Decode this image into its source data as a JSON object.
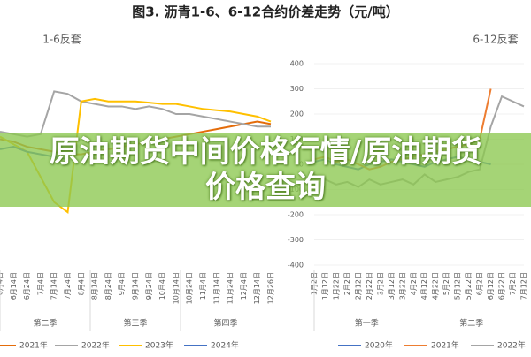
{
  "title": "图3. 沥青1-6、6-12合约价差走势（元/吨）",
  "banner": "原油期货中间价格行情/原油期货价格查询",
  "chart_data": [
    {
      "type": "line",
      "title": "1-6反套",
      "ylim": [
        -400,
        400
      ],
      "grid": false,
      "categories": [
        "6月4日",
        "6月14日",
        "6月24日",
        "7月4日",
        "7月14日",
        "7月24日",
        "8月4日",
        "8月14日",
        "8月24日",
        "9月4日",
        "9月14日",
        "9月24日",
        "10月4日",
        "10月14日",
        "10月24日",
        "11月4日",
        "11月14日",
        "11月24日",
        "12月4日",
        "12月14日",
        "12月26日"
      ],
      "x_groups": [
        "第二季",
        "第三季",
        "第四季"
      ],
      "series": [
        {
          "name": "2021年",
          "color": "#e46c0a",
          "values": [
            100,
            90,
            70,
            60,
            50,
            40,
            40,
            50,
            60,
            70,
            80,
            90,
            100,
            110,
            120,
            130,
            140,
            150,
            160,
            170,
            160
          ]
        },
        {
          "name": "2022年",
          "color": "#a5a5a5",
          "values": [
            130,
            120,
            110,
            120,
            290,
            280,
            250,
            240,
            230,
            230,
            220,
            230,
            220,
            200,
            200,
            190,
            180,
            170,
            160,
            150,
            150
          ]
        },
        {
          "name": "2023年",
          "color": "#ffc000",
          "values": [
            110,
            80,
            50,
            -50,
            -150,
            -190,
            250,
            260,
            250,
            250,
            250,
            245,
            240,
            240,
            230,
            220,
            215,
            210,
            200,
            190,
            170
          ]
        },
        {
          "name": "2024年",
          "color": "#4472c4",
          "values": [
            60,
            70,
            50,
            40,
            30,
            20,
            null,
            null,
            null,
            null,
            null,
            null,
            null,
            null,
            null,
            null,
            null,
            null,
            null,
            null,
            null
          ]
        }
      ]
    },
    {
      "type": "line",
      "title": "6-12反套",
      "ylim": [
        -400,
        400
      ],
      "yticks": [
        -400,
        -300,
        -200,
        -100,
        0,
        100,
        200,
        300,
        400
      ],
      "grid": true,
      "categories": [
        "1月2日",
        "1月12日",
        "1月22日",
        "2月2日",
        "2月12日",
        "2月22日",
        "3月2日",
        "3月12日",
        "3月22日",
        "4月2日",
        "4月12日",
        "4月22日",
        "5月2日",
        "5月12日",
        "5月22日",
        "6月2日",
        "6月12日",
        "6月22日",
        "7月2日",
        "7月12日"
      ],
      "x_groups": [
        "第一季",
        "第二季"
      ],
      "series": [
        {
          "name": "2020年",
          "color": "#4472c4",
          "values": [
            10,
            20,
            0,
            -10,
            -20,
            0,
            10,
            20,
            10,
            0,
            -10,
            10,
            20,
            30,
            20,
            10,
            0,
            null,
            null,
            null
          ]
        },
        {
          "name": "2021年",
          "color": "#ed7d31",
          "values": [
            20,
            30,
            10,
            20,
            0,
            -20,
            -10,
            10,
            20,
            30,
            40,
            50,
            60,
            70,
            80,
            100,
            300,
            null,
            null,
            null
          ]
        },
        {
          "name": "2022年",
          "color": "#a5a5a5",
          "values": [
            -40,
            -60,
            -80,
            -70,
            -90,
            -60,
            -80,
            -70,
            -60,
            -80,
            -40,
            -70,
            -60,
            -50,
            -30,
            -20,
            150,
            270,
            250,
            230
          ]
        }
      ]
    }
  ]
}
